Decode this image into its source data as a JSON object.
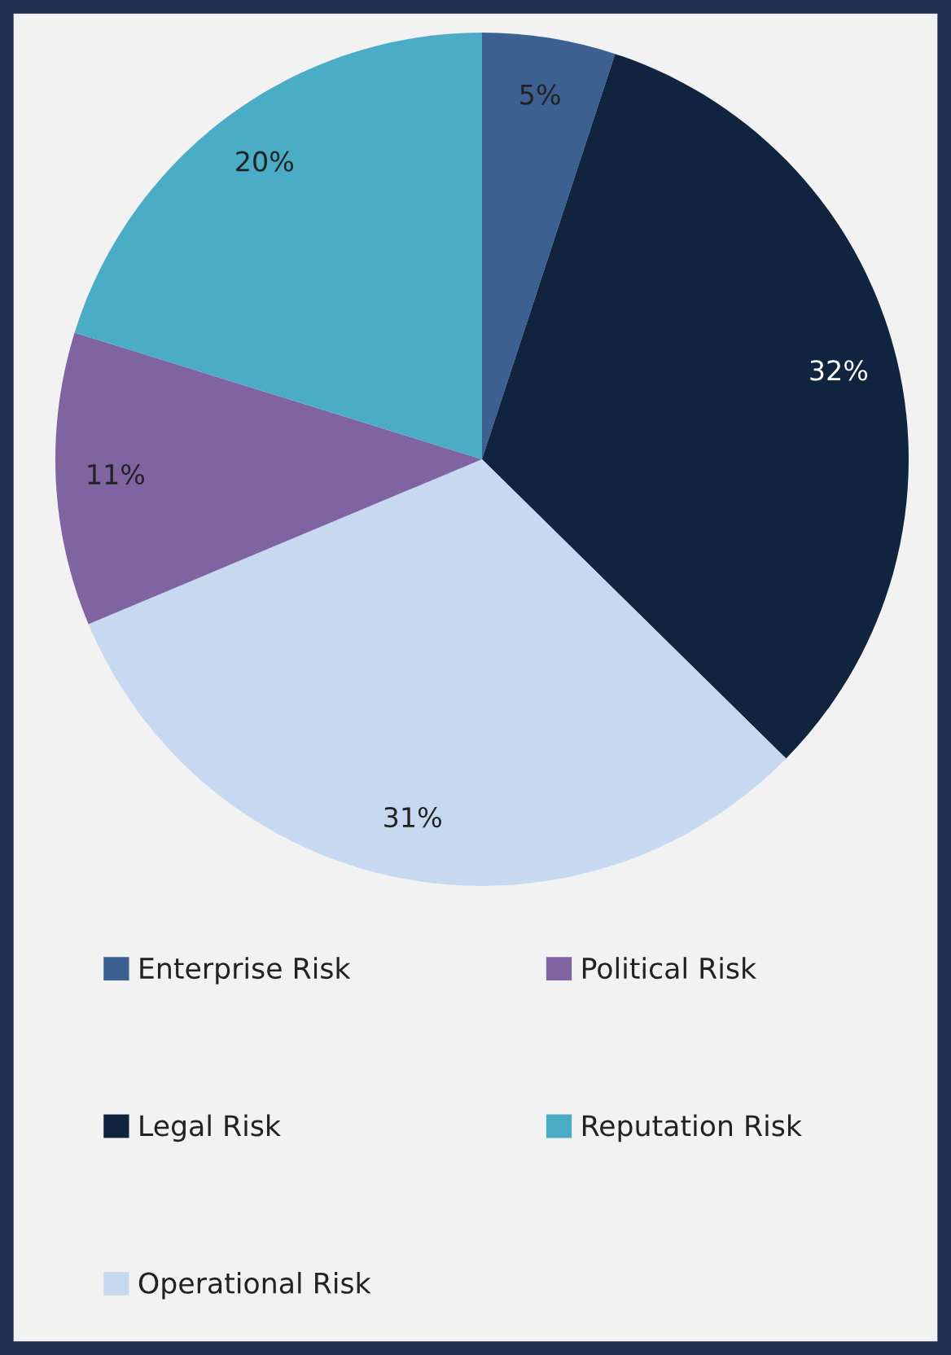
{
  "chart_data": {
    "type": "pie",
    "categories": [
      "Enterprise Risk",
      "Legal Risk",
      "Operational Risk",
      "Political Risk",
      "Reputation Risk"
    ],
    "values": [
      5,
      32,
      31,
      11,
      20
    ],
    "colors": [
      "#3c6090",
      "#10243f",
      "#c6d9f0",
      "#8064a2",
      "#4bacc6"
    ],
    "value_labels": [
      "5%",
      "32%",
      "31%",
      "11%",
      "20%"
    ],
    "legend": "bottom"
  }
}
